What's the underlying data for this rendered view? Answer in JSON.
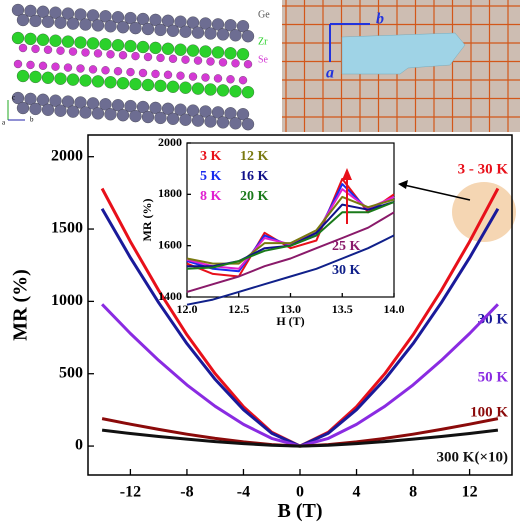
{
  "structure_labels": [
    "Ge",
    "Zr",
    "Se"
  ],
  "structure_axes": [
    "c",
    "a",
    "b"
  ],
  "photo_labels": [
    "b",
    "a"
  ],
  "chart_data": [
    {
      "type": "line",
      "xlabel": "B (T)",
      "ylabel": "MR (%)",
      "x": [
        -14,
        -12,
        -10,
        -8,
        -6,
        -4,
        -2,
        0,
        2,
        4,
        6,
        8,
        10,
        12,
        14
      ],
      "xlim": [
        -15,
        15
      ],
      "ylim": [
        -200,
        2150
      ],
      "xticks": [
        -12,
        -8,
        -4,
        0,
        4,
        8,
        12
      ],
      "yticks": [
        0,
        500,
        1000,
        1500,
        2000
      ],
      "series": [
        {
          "name": "3 - 30 K",
          "color": "#e8101a",
          "values": [
            1780,
            1413,
            1075,
            769,
            500,
            272,
            96,
            0,
            96,
            272,
            500,
            769,
            1075,
            1413,
            1780
          ]
        },
        {
          "name": "30 K",
          "color": "#1a1a9a",
          "values": [
            1640,
            1302,
            991,
            708,
            461,
            251,
            89,
            0,
            89,
            251,
            461,
            708,
            991,
            1302,
            1640
          ]
        },
        {
          "name": "50 K",
          "color": "#8a2be2",
          "values": [
            980,
            778,
            592,
            423,
            275,
            150,
            53,
            0,
            53,
            150,
            275,
            423,
            592,
            778,
            980
          ]
        },
        {
          "name": "100 K",
          "color": "#8b0a0a",
          "values": [
            190,
            151,
            115,
            82,
            53,
            29,
            10,
            0,
            10,
            29,
            53,
            82,
            115,
            151,
            190
          ]
        },
        {
          "name": "300 K(×10)",
          "color": "#111111",
          "values": [
            110,
            87,
            66,
            48,
            31,
            17,
            6,
            0,
            6,
            17,
            31,
            48,
            66,
            87,
            110
          ]
        }
      ]
    },
    {
      "type": "line",
      "xlabel": "H (T)",
      "ylabel": "MR (%)",
      "x": [
        12,
        12.25,
        12.5,
        12.75,
        13,
        13.25,
        13.5,
        13.75,
        14
      ],
      "xlim": [
        12,
        14
      ],
      "ylim": [
        1400,
        2000
      ],
      "xticks": [
        {
          "value": 12,
          "label": "12.0"
        },
        12.5,
        {
          "value": 13,
          "label": "13.0"
        },
        13.5,
        {
          "value": 14,
          "label": "14.0"
        }
      ],
      "yticks": [
        1400,
        1600,
        1800,
        2000
      ],
      "series": [
        {
          "name": "3 K",
          "color": "#e8101a",
          "values": [
            1530,
            1490,
            1480,
            1650,
            1590,
            1620,
            1860,
            1730,
            1800
          ]
        },
        {
          "name": "5 K",
          "color": "#1a2aee",
          "values": [
            1540,
            1510,
            1500,
            1640,
            1600,
            1640,
            1840,
            1740,
            1790
          ]
        },
        {
          "name": "8 K",
          "color": "#e020d0",
          "values": [
            1545,
            1520,
            1510,
            1630,
            1605,
            1650,
            1820,
            1745,
            1790
          ]
        },
        {
          "name": "12 K",
          "color": "#7a7a10",
          "values": [
            1550,
            1530,
            1530,
            1610,
            1610,
            1660,
            1790,
            1750,
            1780
          ]
        },
        {
          "name": "16 K",
          "color": "#10108a",
          "values": [
            1520,
            1520,
            1540,
            1590,
            1600,
            1650,
            1760,
            1740,
            1770
          ]
        },
        {
          "name": "20 K",
          "color": "#1a7a1a",
          "values": [
            1510,
            1515,
            1540,
            1580,
            1600,
            1640,
            1730,
            1730,
            1770
          ]
        },
        {
          "name": "25 K",
          "color": "#8a1a6a",
          "values": [
            1420,
            1450,
            1480,
            1520,
            1550,
            1590,
            1630,
            1670,
            1730
          ]
        },
        {
          "name": "30 K",
          "color": "#10208a",
          "values": [
            1370,
            1390,
            1420,
            1450,
            1480,
            1510,
            1550,
            1590,
            1640
          ]
        }
      ]
    }
  ]
}
